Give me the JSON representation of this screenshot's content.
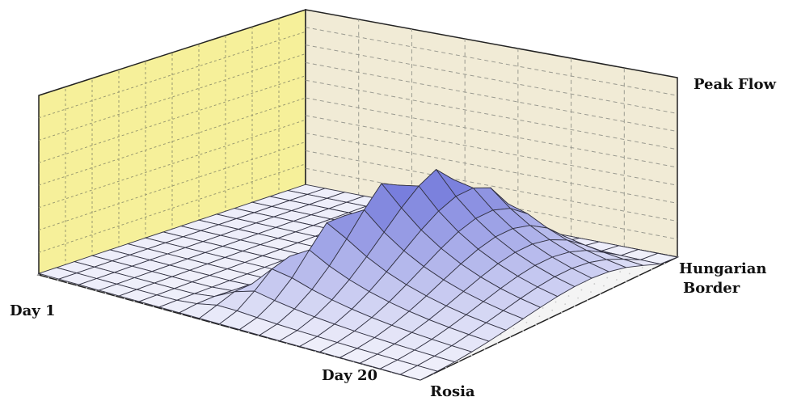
{
  "chart_data": {
    "type": "surface",
    "title": "",
    "x_axis": {
      "label": "",
      "ticks": [
        "Day 1",
        "Day 20"
      ]
    },
    "y_axis": {
      "label": "",
      "ticks": [
        "Rosia",
        "Hungarian Border"
      ]
    },
    "z_axis": {
      "label": "",
      "ticks": [
        "Peak Flow"
      ]
    },
    "days": 20,
    "stations": 16,
    "z_range": [
      0,
      100
    ],
    "peak": {
      "day": 12,
      "station": 8,
      "value": 100
    },
    "grid": true,
    "colors": {
      "left_wall": "#f6f09a",
      "back_wall": "#f1ebd6",
      "floor": "#f4f4f4",
      "surface_low": "#f2f2fb",
      "surface_high": "#2530c8",
      "mesh": "#333344"
    }
  }
}
